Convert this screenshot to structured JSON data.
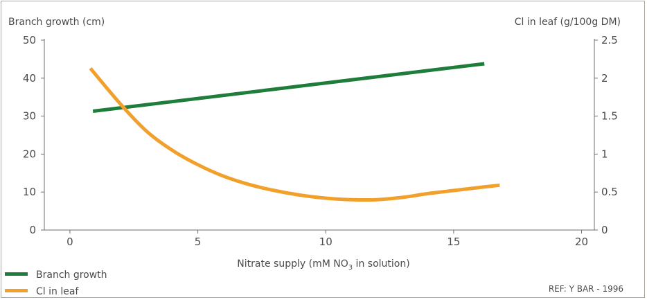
{
  "chart_data": {
    "type": "line",
    "x": {
      "label_prefix": "Nitrate supply (mM NO",
      "label_sub": "3",
      "label_suffix": " in solution)",
      "ticks": [
        0,
        5,
        10,
        15,
        20
      ],
      "range": [
        -1,
        20.5
      ]
    },
    "y_left": {
      "label": "Branch growth (cm)",
      "ticks": [
        0,
        10,
        20,
        30,
        40,
        50
      ],
      "range": [
        0,
        50
      ]
    },
    "y_right": {
      "label": "Cl in leaf (g/100g DM)",
      "ticks": [
        "0",
        "0.5",
        "1",
        "1.5",
        "2",
        "2.5"
      ],
      "tick_values": [
        0,
        0.5,
        1,
        1.5,
        2,
        2.5
      ],
      "range": [
        0,
        2.5
      ]
    },
    "series": [
      {
        "name": "Branch growth",
        "axis": "left",
        "color": "#1e7d3a",
        "points": [
          [
            0.9,
            31.3
          ],
          [
            16.2,
            43.8
          ]
        ]
      },
      {
        "name": "Cl in leaf",
        "axis": "right",
        "color": "#f2a02c",
        "points": [
          [
            0.8,
            2.13
          ],
          [
            2,
            1.65
          ],
          [
            3,
            1.3
          ],
          [
            4,
            1.05
          ],
          [
            5,
            0.86
          ],
          [
            6,
            0.71
          ],
          [
            7,
            0.6
          ],
          [
            8,
            0.52
          ],
          [
            9,
            0.46
          ],
          [
            10,
            0.42
          ],
          [
            11,
            0.4
          ],
          [
            12,
            0.4
          ],
          [
            13,
            0.43
          ],
          [
            14,
            0.48
          ],
          [
            15,
            0.52
          ],
          [
            16,
            0.56
          ],
          [
            16.8,
            0.59
          ]
        ]
      }
    ],
    "legend_position": "bottom-left",
    "note": "REF: Y BAR - 1996"
  }
}
